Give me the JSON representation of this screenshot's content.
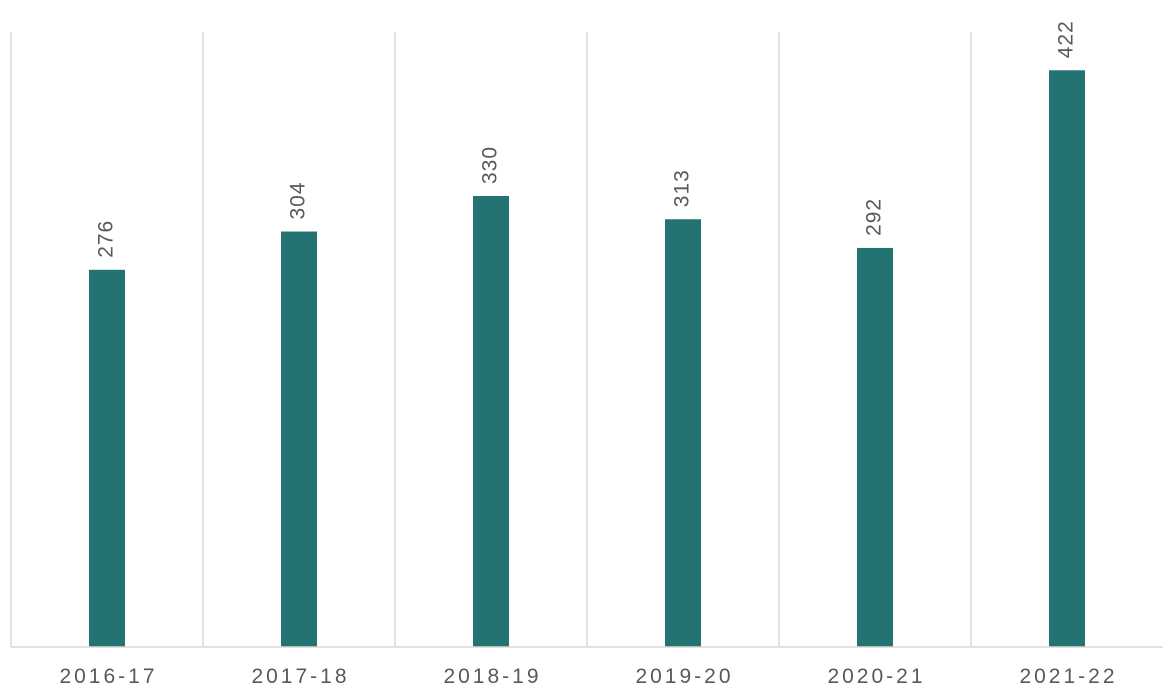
{
  "chart_data": {
    "type": "bar",
    "categories": [
      "2016-17",
      "2017-18",
      "2018-19",
      "2019-20",
      "2020-21",
      "2021-22"
    ],
    "values": [
      276,
      304,
      330,
      313,
      292,
      422
    ],
    "color": "#237373",
    "ylim": [
      0,
      450
    ],
    "data_labels": true
  }
}
